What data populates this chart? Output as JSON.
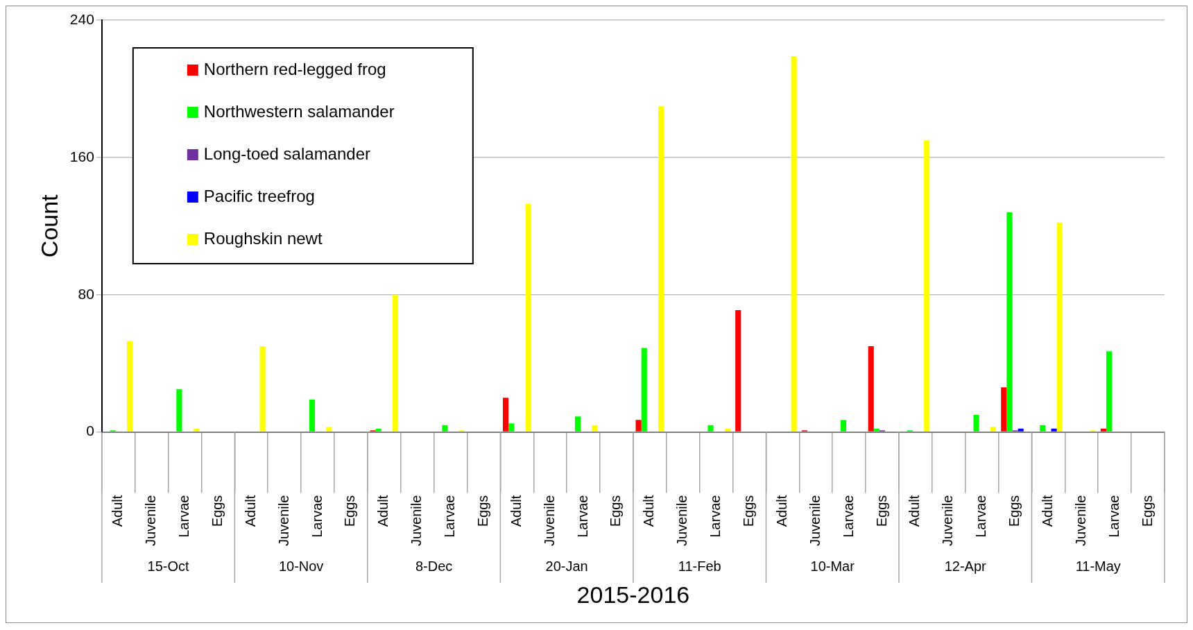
{
  "chart_data": {
    "type": "bar",
    "ylabel": "Count",
    "xlabel": "2015-2016",
    "categories": [
      "Adult",
      "Juvenile",
      "Larvae",
      "Eggs",
      "Adult",
      "Juvenile",
      "Larvae",
      "Eggs",
      "Adult",
      "Juvenile",
      "Larvae",
      "Eggs",
      "Adult",
      "Juvenile",
      "Larvae",
      "Eggs",
      "Adult",
      "Juvenile",
      "Larvae",
      "Eggs",
      "Adult",
      "Juvenile",
      "Larvae",
      "Eggs",
      "Adult",
      "Juvenile",
      "Larvae",
      "Eggs",
      "Adult",
      "Juvenile",
      "Larvae",
      "Eggs"
    ],
    "annotations": [
      "15-Oct",
      "10-Nov",
      "8-Dec",
      "20-Jan",
      "11-Feb",
      "10-Mar",
      "12-Apr",
      "11-May"
    ],
    "series": [
      {
        "name": "Northern red-legged frog",
        "color": "#ff0000",
        "values": [
          0,
          0,
          0,
          0,
          0,
          0,
          0,
          0,
          1,
          0,
          0,
          0,
          20,
          0,
          0,
          0,
          7,
          0,
          0,
          71,
          0,
          1,
          0,
          50,
          0,
          0,
          0,
          26,
          0,
          0,
          2,
          0
        ]
      },
      {
        "name": "Northwestern salamander",
        "color": "#00ff00",
        "values": [
          1,
          0,
          25,
          0,
          0,
          0,
          19,
          0,
          2,
          0,
          4,
          0,
          5,
          0,
          9,
          0,
          49,
          0,
          4,
          0,
          0,
          0,
          7,
          2,
          1,
          0,
          10,
          128,
          4,
          0,
          47,
          0
        ]
      },
      {
        "name": "Long-toed salamander",
        "color": "#7030a0",
        "values": [
          0,
          0,
          0,
          0,
          0,
          0,
          0,
          0,
          0,
          0,
          0,
          0,
          0,
          0,
          0,
          0,
          0,
          0,
          0,
          0,
          0,
          0,
          0,
          1,
          0,
          0,
          0,
          1,
          0,
          0,
          0,
          0
        ]
      },
      {
        "name": "Pacific treefrog",
        "color": "#0000ff",
        "values": [
          0,
          0,
          0,
          0,
          0,
          0,
          0,
          0,
          0,
          0,
          0,
          0,
          0,
          0,
          0,
          0,
          0,
          0,
          0,
          0,
          0,
          0,
          0,
          0,
          0,
          0,
          0,
          2,
          2,
          0,
          0,
          0
        ]
      },
      {
        "name": "Roughskin newt",
        "color": "#ffff00",
        "values": [
          53,
          0,
          2,
          0,
          50,
          0,
          3,
          0,
          80,
          0,
          1,
          0,
          133,
          0,
          4,
          0,
          190,
          0,
          2,
          0,
          219,
          0,
          0,
          0,
          170,
          0,
          3,
          0,
          122,
          1,
          0,
          0
        ]
      }
    ],
    "ylim": [
      0,
      240
    ],
    "yticks": [
      0,
      80,
      160,
      240
    ],
    "grid": "y",
    "legend": "top left"
  }
}
